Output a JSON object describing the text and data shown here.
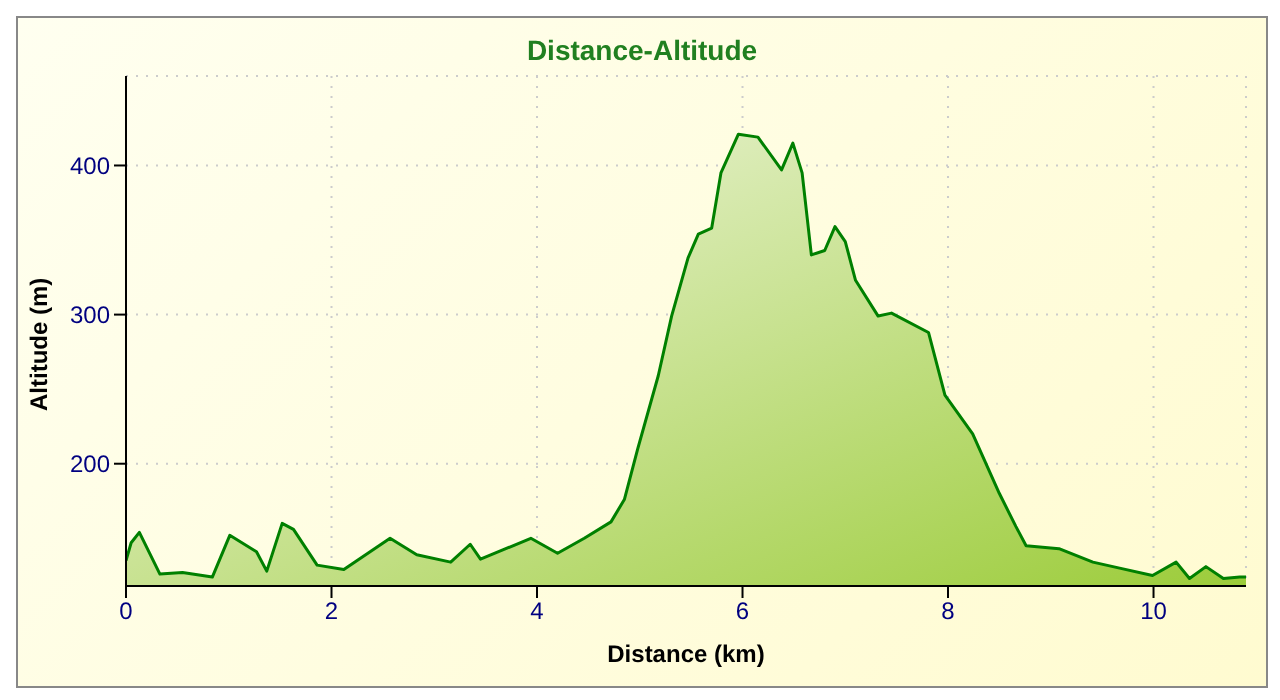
{
  "chart_data": {
    "type": "area",
    "title": "Distance-Altitude",
    "xlabel": "Distance (km)",
    "ylabel": "Altitude (m)",
    "xlim": [
      0,
      10.9
    ],
    "xticks": [
      0,
      2,
      4,
      6,
      8,
      10
    ],
    "ylim": [
      118,
      460
    ],
    "yticks": [
      200,
      300,
      400
    ],
    "grid": true,
    "line_style": "solid",
    "series": [
      {
        "color": "#008000",
        "x": [
          0,
          0.05,
          0.13,
          0.33,
          0.55,
          0.84,
          1.01,
          1.27,
          1.37,
          1.52,
          1.63,
          1.86,
          2.12,
          2.57,
          2.83,
          3.16,
          3.35,
          3.45,
          3.94,
          4.2,
          4.46,
          4.72,
          4.85,
          4.98,
          5.18,
          5.31,
          5.47,
          5.57,
          5.7,
          5.79,
          5.96,
          6.15,
          6.38,
          6.49,
          6.58,
          6.67,
          6.8,
          6.9,
          7.0,
          7.1,
          7.32,
          7.45,
          7.81,
          7.97,
          8.24,
          8.5,
          8.66,
          8.76,
          9.08,
          9.41,
          9.67,
          9.99,
          10.22,
          10.35,
          10.51,
          10.68,
          10.84,
          10.9
        ],
        "values": [
          135,
          147,
          154,
          126,
          127,
          124,
          152,
          141,
          128,
          160,
          156,
          132,
          129,
          150,
          139,
          134,
          146,
          136,
          150,
          140,
          150,
          161,
          176,
          210,
          259,
          299,
          338,
          354,
          358,
          395,
          421,
          419,
          397,
          415,
          395,
          340,
          343,
          359,
          349,
          323,
          299,
          301,
          288,
          246,
          220,
          180,
          158,
          145,
          143,
          134,
          130,
          125,
          134,
          123,
          131,
          123,
          124,
          124
        ]
      }
    ]
  }
}
